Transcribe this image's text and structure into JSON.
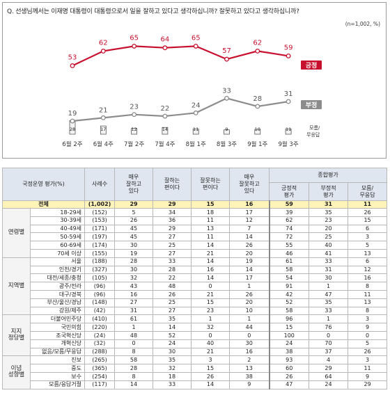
{
  "question": "Q. 선생님께서는 이재명 대통령이 대통령으로서 일을 잘하고 있다고 생각하십니까? 잘못하고 있다고 생각하십니까?",
  "sample_note": "(n=1,002, %)",
  "colors": {
    "positive": "#c8102e",
    "negative": "#8c8c8c",
    "dontknow": "#333333",
    "header_bg": "#dfe6f0",
    "total_bg": "#fff3b8"
  },
  "chart_data": {
    "type": "line",
    "categories": [
      "6월 2주",
      "6월 4주",
      "7월 2주",
      "7월 4주",
      "8월 1주",
      "8월 3주",
      "9월 1주",
      "9월 3주"
    ],
    "series": [
      {
        "name": "긍정",
        "values": [
          53,
          62,
          65,
          64,
          65,
          57,
          62,
          59
        ]
      },
      {
        "name": "부정",
        "values": [
          19,
          21,
          23,
          22,
          24,
          33,
          28,
          31
        ]
      },
      {
        "name": "모름/\n무응답",
        "values": [
          28,
          17,
          12,
          14,
          11,
          9,
          10,
          11
        ]
      }
    ]
  },
  "legend": {
    "positive": "긍정",
    "negative": "부정",
    "dontknow_1": "모름/",
    "dontknow_2": "무응답"
  },
  "table": {
    "header": {
      "category": "국정운영 평가(%)",
      "n": "사례수",
      "c1": [
        "매우",
        "잘하고",
        "있다"
      ],
      "c2": [
        "잘하는",
        "편이다"
      ],
      "c3": [
        "잘못하는",
        "편이다"
      ],
      "c4": [
        "매우",
        "잘못하고",
        "있다"
      ],
      "summary": "종합평가",
      "s1": [
        "긍정적",
        "평가"
      ],
      "s2": [
        "부정적",
        "평가"
      ],
      "s3": [
        "모름/",
        "무응답"
      ]
    },
    "total": {
      "label": "전체",
      "n": "(1,002)",
      "v": [
        "29",
        "29",
        "15",
        "16",
        "59",
        "31",
        "11"
      ]
    },
    "groups": [
      {
        "name": "연령별",
        "rows": [
          {
            "label": "18-29세",
            "n": "(152)",
            "v": [
              "5",
              "34",
              "18",
              "17",
              "39",
              "35",
              "26"
            ]
          },
          {
            "label": "30-39세",
            "n": "(153)",
            "v": [
              "26",
              "36",
              "11",
              "12",
              "62",
              "23",
              "15"
            ]
          },
          {
            "label": "40-49세",
            "n": "(171)",
            "v": [
              "45",
              "29",
              "13",
              "7",
              "74",
              "20",
              "6"
            ]
          },
          {
            "label": "50-59세",
            "n": "(197)",
            "v": [
              "45",
              "27",
              "11",
              "14",
              "72",
              "25",
              "3"
            ]
          },
          {
            "label": "60-69세",
            "n": "(174)",
            "v": [
              "30",
              "25",
              "14",
              "26",
              "55",
              "40",
              "5"
            ]
          },
          {
            "label": "70세 이상",
            "n": "(155)",
            "v": [
              "19",
              "27",
              "21",
              "20",
              "46",
              "41",
              "13"
            ]
          }
        ]
      },
      {
        "name": "지역별",
        "rows": [
          {
            "label": "서울",
            "n": "(188)",
            "v": [
              "28",
              "33",
              "14",
              "19",
              "61",
              "33",
              "6"
            ]
          },
          {
            "label": "인천/경기",
            "n": "(327)",
            "v": [
              "30",
              "28",
              "16",
              "14",
              "58",
              "31",
              "12"
            ]
          },
          {
            "label": "대전/세종/충청",
            "n": "(105)",
            "v": [
              "32",
              "22",
              "14",
              "17",
              "54",
              "30",
              "16"
            ]
          },
          {
            "label": "광주/전라",
            "n": "(96)",
            "v": [
              "43",
              "48",
              "0",
              "1",
              "91",
              "1",
              "8"
            ]
          },
          {
            "label": "대구/경북",
            "n": "(96)",
            "v": [
              "16",
              "26",
              "21",
              "26",
              "42",
              "47",
              "11"
            ]
          },
          {
            "label": "부산/울산/경남",
            "n": "(148)",
            "v": [
              "27",
              "25",
              "15",
              "20",
              "52",
              "35",
              "13"
            ]
          },
          {
            "label": "강원/제주",
            "n": "(42)",
            "v": [
              "31",
              "27",
              "23",
              "10",
              "58",
              "33",
              "8"
            ]
          }
        ]
      },
      {
        "name": "지지\n정당별",
        "rows": [
          {
            "label": "더불어민주당",
            "n": "(410)",
            "v": [
              "61",
              "35",
              "1",
              "1",
              "96",
              "1",
              "3"
            ]
          },
          {
            "label": "국민의힘",
            "n": "(220)",
            "v": [
              "1",
              "14",
              "32",
              "44",
              "15",
              "76",
              "9"
            ]
          },
          {
            "label": "조국혁신당",
            "n": "(24)",
            "v": [
              "48",
              "52",
              "0",
              "0",
              "100",
              "0",
              "0"
            ]
          },
          {
            "label": "개혁신당",
            "n": "(32)",
            "v": [
              "0",
              "24",
              "40",
              "30",
              "24",
              "70",
              "5"
            ]
          },
          {
            "label": "없음/모름/무응답",
            "n": "(288)",
            "v": [
              "8",
              "30",
              "21",
              "16",
              "38",
              "37",
              "26"
            ]
          }
        ]
      },
      {
        "name": "이념\n성향별",
        "rows": [
          {
            "label": "진보",
            "n": "(265)",
            "v": [
              "58",
              "35",
              "3",
              "2",
              "93",
              "4",
              "3"
            ]
          },
          {
            "label": "중도",
            "n": "(365)",
            "v": [
              "28",
              "32",
              "15",
              "13",
              "60",
              "29",
              "11"
            ]
          },
          {
            "label": "보수",
            "n": "(254)",
            "v": [
              "8",
              "18",
              "26",
              "38",
              "26",
              "64",
              "9"
            ]
          },
          {
            "label": "모름/응답거절",
            "n": "(117)",
            "v": [
              "14",
              "33",
              "14",
              "9",
              "47",
              "24",
              "29"
            ]
          }
        ]
      }
    ]
  }
}
